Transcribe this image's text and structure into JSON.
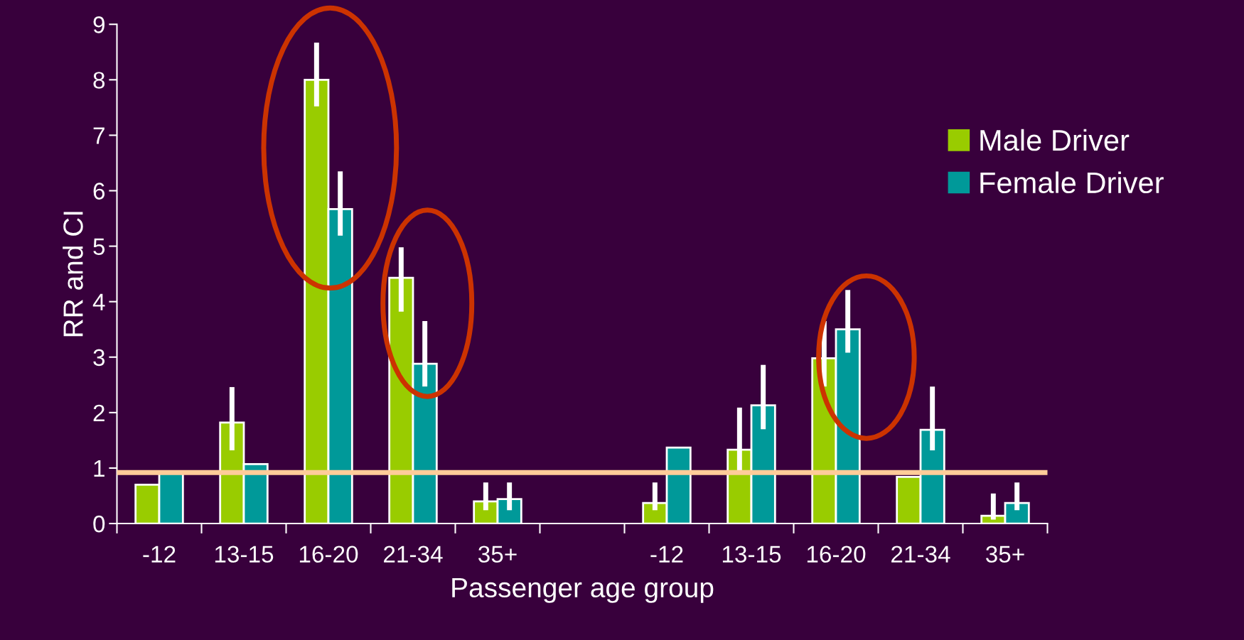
{
  "chart_data": {
    "type": "bar",
    "xlabel": "Passenger age group",
    "ylabel": "RR and CI",
    "categories": [
      "-12",
      "13-15",
      "16-20",
      "21-34",
      "35+",
      null,
      "-12",
      "13-15",
      "16-20",
      "21-34",
      "35+"
    ],
    "series": [
      {
        "name": "Male Driver",
        "color": "#99cc00",
        "values": [
          0.7,
          1.82,
          8.0,
          4.43,
          0.4,
          null,
          0.37,
          1.33,
          2.98,
          0.84,
          0.14
        ],
        "errors": [
          null,
          [
            1.32,
            2.46
          ],
          [
            7.52,
            8.67
          ],
          [
            3.82,
            4.98
          ],
          [
            0.24,
            0.74
          ],
          null,
          [
            0.24,
            0.74
          ],
          [
            0.93,
            2.09
          ],
          [
            2.47,
            3.65
          ],
          null,
          [
            0.07,
            0.54
          ]
        ]
      },
      {
        "name": "Female Driver",
        "color": "#009999",
        "values": [
          0.92,
          1.07,
          5.67,
          2.88,
          0.44,
          null,
          1.37,
          2.13,
          3.5,
          1.69,
          0.37
        ],
        "errors": [
          null,
          null,
          [
            5.19,
            6.35
          ],
          [
            2.47,
            3.65
          ],
          [
            0.24,
            0.74
          ],
          null,
          null,
          [
            1.7,
            2.86
          ],
          [
            3.08,
            4.21
          ],
          [
            1.32,
            2.47
          ],
          [
            0.24,
            0.74
          ]
        ]
      }
    ],
    "ylim": [
      0,
      9
    ],
    "yticks": [
      0,
      1,
      2,
      3,
      4,
      5,
      6,
      7,
      8,
      9
    ],
    "ref_lines": [
      {
        "axis": "y",
        "value": 0.92,
        "color": "#ffcc99"
      }
    ],
    "legend": "right",
    "grid": false
  }
}
